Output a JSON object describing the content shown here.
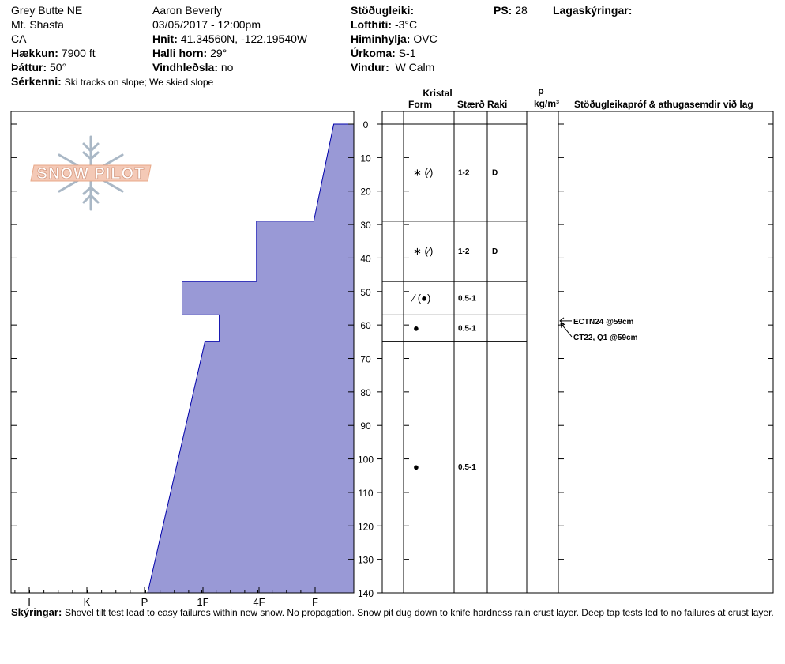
{
  "header": {
    "location_name": "Grey Butte NE",
    "region": "Mt. Shasta",
    "state": "CA",
    "elevation_label": "Hækkun:",
    "elevation_value": "7900 ft",
    "aspect_label": "Þáttur:",
    "aspect_value": "50°",
    "features_label": "Sérkenni:",
    "features_value": "Ski tracks on slope; We skied slope",
    "observer": "Aaron Beverly",
    "datetime": "03/05/2017 - 12:00pm",
    "coords_label": "Hnit:",
    "coords_value": "41.34560N, -122.19540W",
    "slope_label": "Halli horn:",
    "slope_value": "29°",
    "wind_loading_label": "Vindhleðsla:",
    "wind_loading_value": "no",
    "stability_label": "Stöðugleiki:",
    "air_temp_label": "Lofthiti:",
    "air_temp_value": "-3°C",
    "sky_label": "Himinhylja:",
    "sky_value": "OVC",
    "precip_label": "Úrkoma:",
    "precip_value": "S-1",
    "wind_label": "Vindur:",
    "wind_value": "W Calm",
    "ps_label": "PS:",
    "ps_value": "28",
    "layer_notes_label": "Lagaskýringar:"
  },
  "logo": {
    "text": "SNOW PILOT"
  },
  "footer": {
    "notes_label": "Skýringar:",
    "notes_value": "Shovel tilt test lead to easy failures within new snow. No propagation. Snow pit dug down to knife hardness rain crust layer. Deep tap tests led to no failures at crust layer."
  },
  "table_headers": {
    "crystal": "Kristal",
    "form": "Form",
    "size": "Stærð",
    "moisture": "Raki",
    "rho": "ρ",
    "density_unit": "kg/m³",
    "tests": "Stöðugleikapróf & athugasemdir við lag"
  },
  "colors": {
    "hardness_fill": "#9999d6",
    "hardness_stroke": "#0000aa"
  },
  "chart_data": {
    "type": "area",
    "title": "",
    "xlabel": "",
    "ylabel": "",
    "hardness_ticks": [
      "I",
      "K",
      "P",
      "1F",
      "4F",
      "F"
    ],
    "depth_ticks": [
      0,
      10,
      20,
      30,
      40,
      50,
      60,
      70,
      80,
      90,
      100,
      110,
      120,
      130,
      140
    ],
    "ylim": [
      0,
      140
    ],
    "hardness_profile": [
      {
        "depth": 0,
        "hardness": 0.35
      },
      {
        "depth": 29,
        "hardness": 0.7
      },
      {
        "depth": 29,
        "hardness": 1.7
      },
      {
        "depth": 47,
        "hardness": 1.7
      },
      {
        "depth": 47,
        "hardness": 3.0
      },
      {
        "depth": 57,
        "hardness": 3.0
      },
      {
        "depth": 57,
        "hardness": 2.35
      },
      {
        "depth": 65,
        "hardness": 2.35
      },
      {
        "depth": 65,
        "hardness": 2.6
      },
      {
        "depth": 140,
        "hardness": 3.6
      }
    ],
    "layer_boundaries": [
      0,
      29,
      47,
      57,
      65,
      140
    ],
    "layers": [
      {
        "mid_depth": 14.5,
        "form": "∗ (⁄)",
        "size": "1-2",
        "moisture": "D"
      },
      {
        "mid_depth": 38,
        "form": "∗ (⁄)",
        "size": "1-2",
        "moisture": "D"
      },
      {
        "mid_depth": 52,
        "form": "⁄ (●)",
        "size": "0.5-1",
        "moisture": ""
      },
      {
        "mid_depth": 61,
        "form": "●",
        "size": "0.5-1",
        "moisture": ""
      },
      {
        "mid_depth": 102.5,
        "form": "●",
        "size": "0.5-1",
        "moisture": ""
      }
    ],
    "stability_tests": [
      {
        "depth": 59,
        "label": "ECTN24 @59cm"
      },
      {
        "depth": 59,
        "label": "CT22, Q1 @59cm"
      }
    ]
  }
}
